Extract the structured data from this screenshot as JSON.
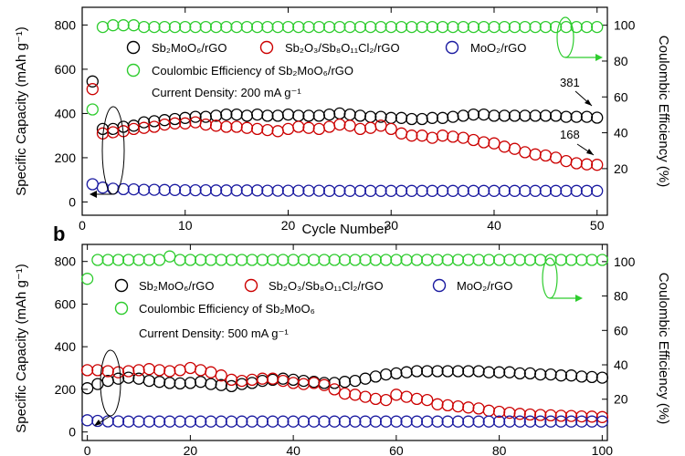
{
  "chart_data": [
    {
      "panel": "",
      "type": "scatter",
      "xlabel": "Cycle Number",
      "ylabel": "Specific Capacity (mAh g⁻¹)",
      "y2label": "Coulombic Efficiency (%)",
      "xlim": [
        0,
        51
      ],
      "ylim": [
        -60,
        880
      ],
      "y2lim": [
        -6,
        110
      ],
      "xticks": [
        0,
        10,
        20,
        30,
        40,
        50
      ],
      "yticks": [
        0,
        200,
        400,
        600,
        800
      ],
      "y2ticks": [
        20,
        40,
        60,
        80,
        100
      ],
      "x": [
        1,
        2,
        3,
        4,
        5,
        6,
        7,
        8,
        9,
        10,
        11,
        12,
        13,
        14,
        15,
        16,
        17,
        18,
        19,
        20,
        21,
        22,
        23,
        24,
        25,
        26,
        27,
        28,
        29,
        30,
        31,
        32,
        33,
        34,
        35,
        36,
        37,
        38,
        39,
        40,
        41,
        42,
        43,
        44,
        45,
        46,
        47,
        48,
        49,
        50
      ],
      "series": [
        {
          "name": "Sb2MoO6/rGO",
          "axis": "left",
          "color": "#000000",
          "values": [
            545,
            330,
            330,
            340,
            345,
            360,
            365,
            370,
            375,
            380,
            385,
            385,
            390,
            395,
            395,
            390,
            395,
            390,
            390,
            395,
            390,
            390,
            390,
            395,
            400,
            395,
            390,
            385,
            385,
            380,
            380,
            375,
            375,
            380,
            380,
            385,
            390,
            395,
            395,
            390,
            390,
            390,
            390,
            390,
            390,
            390,
            385,
            385,
            385,
            381
          ]
        },
        {
          "name": "Sb2O3/Sb8O11Cl2/rGO",
          "axis": "left",
          "color": "#cc0000",
          "values": [
            510,
            310,
            315,
            320,
            330,
            335,
            340,
            350,
            355,
            355,
            360,
            350,
            345,
            340,
            340,
            335,
            330,
            325,
            320,
            330,
            340,
            335,
            330,
            340,
            350,
            345,
            330,
            335,
            345,
            330,
            310,
            300,
            300,
            290,
            300,
            295,
            290,
            280,
            270,
            265,
            250,
            240,
            225,
            215,
            210,
            200,
            185,
            175,
            170,
            168
          ]
        },
        {
          "name": "MoO2/rGO",
          "axis": "left",
          "color": "#1a1aa0",
          "values": [
            80,
            65,
            60,
            58,
            57,
            55,
            55,
            54,
            54,
            53,
            53,
            53,
            52,
            52,
            52,
            52,
            52,
            51,
            51,
            51,
            51,
            51,
            51,
            50,
            50,
            50,
            50,
            50,
            50,
            50,
            50,
            50,
            50,
            50,
            50,
            50,
            50,
            50,
            50,
            50,
            50,
            50,
            50,
            50,
            50,
            50,
            50,
            50,
            50,
            50
          ]
        },
        {
          "name": "Coulombic Efficiency of Sb2MoO6/rGO",
          "axis": "right",
          "color": "#2ecc2e",
          "values": [
            53,
            99,
            100,
            100,
            100,
            99,
            99,
            99,
            99,
            99,
            99,
            99,
            99,
            99,
            99,
            99,
            99,
            99,
            99,
            99,
            99,
            99,
            99,
            99,
            99,
            99,
            99,
            99,
            99,
            99,
            99,
            99,
            99,
            99,
            99,
            99,
            99,
            99,
            99,
            99,
            99,
            99,
            99,
            99,
            99,
            99,
            99,
            99,
            99,
            99
          ]
        }
      ],
      "legend": [
        "Sb₂MoO₆/rGO",
        "Sb₂O₃/Sb₈O₁₁Cl₂/rGO",
        "MoO₂/rGO",
        "Coulombic Efficiency of Sb₂MoO₆/rGO"
      ],
      "note": "Current Density: 200 mA g⁻¹",
      "annotations": [
        "381",
        "168"
      ]
    },
    {
      "panel": "b",
      "type": "scatter",
      "xlabel": "",
      "ylabel": "Specific Capacity (mAh g⁻¹)",
      "y2label": "Coulombic Efficiency (%)",
      "xlim": [
        -1,
        101
      ],
      "ylim": [
        -40,
        880
      ],
      "y2lim": [
        -4,
        110
      ],
      "xticks": [
        0,
        20,
        40,
        60,
        80,
        100
      ],
      "yticks": [
        0,
        200,
        400,
        600,
        800
      ],
      "y2ticks": [
        20,
        40,
        60,
        80,
        100
      ],
      "x": [
        0,
        2,
        4,
        6,
        8,
        10,
        12,
        14,
        16,
        18,
        20,
        22,
        24,
        26,
        28,
        30,
        32,
        34,
        36,
        38,
        40,
        42,
        44,
        46,
        48,
        50,
        52,
        54,
        56,
        58,
        60,
        62,
        64,
        66,
        68,
        70,
        72,
        74,
        76,
        78,
        80,
        82,
        84,
        86,
        88,
        90,
        92,
        94,
        96,
        98,
        100
      ],
      "series": [
        {
          "name": "Sb2MoO6/rGO",
          "axis": "left",
          "color": "#000000",
          "values": [
            205,
            225,
            240,
            250,
            255,
            250,
            240,
            235,
            230,
            228,
            230,
            235,
            225,
            220,
            215,
            225,
            230,
            240,
            245,
            250,
            245,
            240,
            235,
            230,
            230,
            235,
            240,
            250,
            260,
            270,
            275,
            280,
            285,
            285,
            285,
            285,
            285,
            285,
            285,
            280,
            280,
            280,
            275,
            275,
            270,
            270,
            265,
            265,
            260,
            258,
            255
          ]
        },
        {
          "name": "Sb2O3/Sb8O11Cl2/rGO",
          "axis": "left",
          "color": "#cc0000",
          "values": [
            290,
            290,
            285,
            280,
            285,
            290,
            295,
            290,
            285,
            290,
            300,
            290,
            280,
            265,
            245,
            240,
            245,
            250,
            250,
            240,
            230,
            225,
            230,
            220,
            200,
            180,
            175,
            165,
            155,
            150,
            175,
            165,
            155,
            150,
            130,
            125,
            120,
            115,
            110,
            100,
            95,
            90,
            85,
            82,
            80,
            78,
            76,
            75,
            73,
            72,
            70
          ]
        },
        {
          "name": "MoO2/rGO",
          "axis": "left",
          "color": "#1a1aa0",
          "values": [
            55,
            52,
            50,
            50,
            49,
            49,
            49,
            49,
            49,
            49,
            49,
            49,
            49,
            49,
            49,
            49,
            49,
            49,
            49,
            49,
            49,
            49,
            49,
            49,
            49,
            49,
            49,
            49,
            49,
            49,
            49,
            49,
            49,
            49,
            49,
            49,
            49,
            49,
            49,
            49,
            49,
            49,
            49,
            49,
            49,
            49,
            49,
            49,
            49,
            49,
            49
          ]
        },
        {
          "name": "Coulombic Efficiency of Sb2MoO6",
          "axis": "right",
          "color": "#2ecc2e",
          "values": [
            90,
            101,
            101,
            101,
            101,
            101,
            101,
            101,
            103,
            101,
            101,
            101,
            101,
            101,
            101,
            101,
            101,
            101,
            101,
            101,
            101,
            101,
            101,
            101,
            101,
            101,
            101,
            101,
            101,
            101,
            101,
            101,
            101,
            101,
            101,
            101,
            101,
            101,
            101,
            101,
            101,
            101,
            101,
            101,
            101,
            101,
            101,
            101,
            101,
            101,
            101
          ]
        }
      ],
      "legend": [
        "Sb₂MoO₆/rGO",
        "Sb₂O₃/Sb₈O₁₁Cl₂/rGO",
        "MoO₂/rGO",
        "Coulombic Efficiency of Sb₂MoO₆"
      ],
      "note": "Current Density: 500 mA g⁻¹",
      "annotations": []
    }
  ]
}
